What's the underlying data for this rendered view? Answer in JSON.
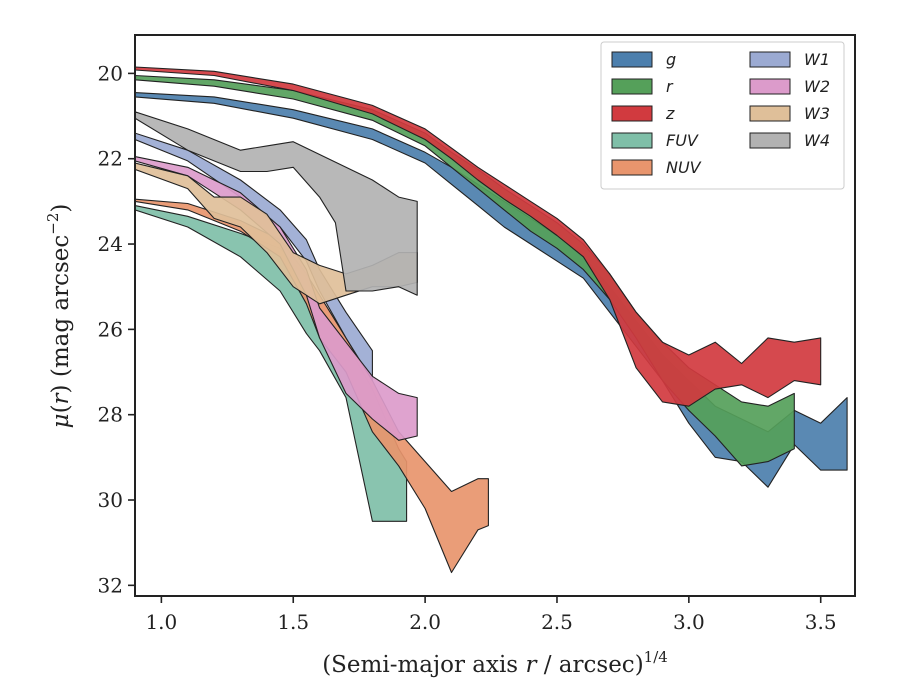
{
  "chart_data": {
    "type": "area",
    "xlabel": "(Semi-major axis r / arcsec)^1/4",
    "ylabel": "μ(r) (mag arcsec^−2)",
    "xlabel_parts": {
      "pre": "(Semi-major axis ",
      "var": "r",
      "post": " / arcsec)",
      "sup": "1/4"
    },
    "ylabel_parts": {
      "var": "μ",
      "open": "(",
      "var2": "r",
      "close": ")",
      "rest": " (mag arcsec",
      "sup": "−2",
      "end": ")"
    },
    "xlim": [
      0.9,
      3.63
    ],
    "ylim": [
      32.25,
      19.1
    ],
    "y_inverted": true,
    "xticks": [
      "1.0",
      "1.5",
      "2.0",
      "2.5",
      "3.0",
      "3.5"
    ],
    "xtick_values": [
      1.0,
      1.5,
      2.0,
      2.5,
      3.0,
      3.5
    ],
    "yticks": [
      "20",
      "22",
      "24",
      "26",
      "28",
      "30",
      "32"
    ],
    "ytick_values": [
      20,
      22,
      24,
      26,
      28,
      30,
      32
    ],
    "grid": false,
    "legend_placement": "top-right",
    "legend_columns": 2,
    "series": [
      {
        "name": "g",
        "color": "#4c7fad",
        "upper": [
          [
            0.9,
            20.45
          ],
          [
            1.2,
            20.55
          ],
          [
            1.5,
            20.85
          ],
          [
            1.8,
            21.3
          ],
          [
            2.0,
            21.85
          ],
          [
            2.1,
            22.2
          ],
          [
            2.2,
            22.6
          ],
          [
            2.3,
            23.0
          ],
          [
            2.4,
            23.4
          ],
          [
            2.5,
            23.8
          ],
          [
            2.6,
            24.3
          ],
          [
            2.7,
            25.0
          ],
          [
            2.8,
            25.8
          ],
          [
            2.9,
            26.6
          ],
          [
            3.0,
            27.2
          ],
          [
            3.1,
            27.8
          ],
          [
            3.2,
            28.1
          ],
          [
            3.3,
            28.4
          ],
          [
            3.4,
            27.9
          ],
          [
            3.5,
            28.2
          ],
          [
            3.6,
            27.6
          ]
        ],
        "lower": [
          [
            0.9,
            20.55
          ],
          [
            1.2,
            20.7
          ],
          [
            1.5,
            21.05
          ],
          [
            1.8,
            21.55
          ],
          [
            2.0,
            22.1
          ],
          [
            2.1,
            22.6
          ],
          [
            2.2,
            23.1
          ],
          [
            2.3,
            23.6
          ],
          [
            2.4,
            24.0
          ],
          [
            2.5,
            24.4
          ],
          [
            2.6,
            24.8
          ],
          [
            2.7,
            25.6
          ],
          [
            2.8,
            26.4
          ],
          [
            2.9,
            27.2
          ],
          [
            3.0,
            28.2
          ],
          [
            3.1,
            29.0
          ],
          [
            3.2,
            29.1
          ],
          [
            3.3,
            29.7
          ],
          [
            3.4,
            28.7
          ],
          [
            3.5,
            29.3
          ],
          [
            3.6,
            29.3
          ]
        ]
      },
      {
        "name": "r",
        "color": "#55a05a",
        "upper": [
          [
            0.9,
            20.05
          ],
          [
            1.2,
            20.15
          ],
          [
            1.5,
            20.4
          ],
          [
            1.8,
            20.85
          ],
          [
            2.0,
            21.4
          ],
          [
            2.1,
            21.85
          ],
          [
            2.2,
            22.25
          ],
          [
            2.3,
            22.7
          ],
          [
            2.4,
            23.1
          ],
          [
            2.5,
            23.5
          ],
          [
            2.6,
            24.0
          ],
          [
            2.7,
            24.7
          ],
          [
            2.8,
            25.6
          ],
          [
            2.9,
            26.3
          ],
          [
            3.0,
            26.9
          ],
          [
            3.1,
            27.3
          ],
          [
            3.2,
            27.7
          ],
          [
            3.3,
            27.8
          ],
          [
            3.4,
            27.5
          ]
        ],
        "lower": [
          [
            0.9,
            20.15
          ],
          [
            1.2,
            20.3
          ],
          [
            1.5,
            20.6
          ],
          [
            1.8,
            21.1
          ],
          [
            2.0,
            21.7
          ],
          [
            2.1,
            22.2
          ],
          [
            2.2,
            22.7
          ],
          [
            2.3,
            23.2
          ],
          [
            2.4,
            23.7
          ],
          [
            2.5,
            24.1
          ],
          [
            2.6,
            24.6
          ],
          [
            2.7,
            25.3
          ],
          [
            2.8,
            26.2
          ],
          [
            2.9,
            27.2
          ],
          [
            3.0,
            27.9
          ],
          [
            3.1,
            28.5
          ],
          [
            3.2,
            29.2
          ],
          [
            3.3,
            29.1
          ],
          [
            3.4,
            28.8
          ]
        ]
      },
      {
        "name": "z",
        "color": "#d13a3f",
        "upper": [
          [
            0.9,
            19.85
          ],
          [
            1.2,
            19.95
          ],
          [
            1.5,
            20.25
          ],
          [
            1.8,
            20.75
          ],
          [
            2.0,
            21.3
          ],
          [
            2.1,
            21.75
          ],
          [
            2.2,
            22.2
          ],
          [
            2.3,
            22.6
          ],
          [
            2.4,
            23.0
          ],
          [
            2.5,
            23.4
          ],
          [
            2.6,
            23.9
          ],
          [
            2.7,
            24.7
          ],
          [
            2.8,
            25.6
          ],
          [
            2.9,
            26.3
          ],
          [
            3.0,
            26.6
          ],
          [
            3.1,
            26.3
          ],
          [
            3.2,
            26.8
          ],
          [
            3.3,
            26.2
          ],
          [
            3.4,
            26.3
          ],
          [
            3.5,
            26.2
          ]
        ],
        "lower": [
          [
            0.9,
            19.92
          ],
          [
            1.2,
            20.05
          ],
          [
            1.5,
            20.4
          ],
          [
            1.8,
            20.95
          ],
          [
            2.0,
            21.55
          ],
          [
            2.1,
            22.0
          ],
          [
            2.2,
            22.5
          ],
          [
            2.3,
            22.95
          ],
          [
            2.4,
            23.35
          ],
          [
            2.5,
            23.8
          ],
          [
            2.6,
            24.3
          ],
          [
            2.7,
            25.3
          ],
          [
            2.8,
            26.9
          ],
          [
            2.9,
            27.7
          ],
          [
            3.0,
            27.8
          ],
          [
            3.1,
            27.4
          ],
          [
            3.2,
            27.3
          ],
          [
            3.3,
            27.6
          ],
          [
            3.4,
            27.2
          ],
          [
            3.5,
            27.3
          ]
        ]
      },
      {
        "name": "FUV",
        "color": "#7fbfa8",
        "upper": [
          [
            0.9,
            23.1
          ],
          [
            1.1,
            23.35
          ],
          [
            1.3,
            23.75
          ],
          [
            1.45,
            24.1
          ],
          [
            1.55,
            24.8
          ],
          [
            1.6,
            25.6
          ],
          [
            1.7,
            26.3
          ],
          [
            1.8,
            27.4
          ],
          [
            1.9,
            28.8
          ],
          [
            1.93,
            29.1
          ]
        ],
        "lower": [
          [
            0.9,
            23.2
          ],
          [
            1.1,
            23.6
          ],
          [
            1.3,
            24.3
          ],
          [
            1.45,
            25.1
          ],
          [
            1.55,
            26.1
          ],
          [
            1.6,
            26.5
          ],
          [
            1.7,
            27.6
          ],
          [
            1.8,
            30.5
          ],
          [
            1.93,
            30.5
          ]
        ]
      },
      {
        "name": "NUV",
        "color": "#e8956d",
        "upper": [
          [
            0.9,
            22.95
          ],
          [
            1.1,
            23.05
          ],
          [
            1.3,
            23.45
          ],
          [
            1.45,
            23.9
          ],
          [
            1.55,
            24.7
          ],
          [
            1.6,
            25.2
          ],
          [
            1.7,
            26.2
          ],
          [
            1.8,
            27.2
          ],
          [
            1.9,
            28.4
          ],
          [
            2.0,
            29.1
          ],
          [
            2.1,
            29.8
          ],
          [
            2.2,
            29.5
          ],
          [
            2.24,
            29.5
          ]
        ],
        "lower": [
          [
            0.9,
            23.0
          ],
          [
            1.1,
            23.2
          ],
          [
            1.3,
            23.7
          ],
          [
            1.45,
            24.3
          ],
          [
            1.55,
            25.4
          ],
          [
            1.6,
            26.2
          ],
          [
            1.7,
            27.0
          ],
          [
            1.8,
            28.4
          ],
          [
            1.9,
            29.2
          ],
          [
            2.0,
            30.2
          ],
          [
            2.1,
            31.7
          ],
          [
            2.2,
            30.7
          ],
          [
            2.24,
            30.6
          ]
        ]
      },
      {
        "name": "W1",
        "color": "#9baad2",
        "upper": [
          [
            0.9,
            21.4
          ],
          [
            1.1,
            21.8
          ],
          [
            1.3,
            22.5
          ],
          [
            1.45,
            23.2
          ],
          [
            1.55,
            23.9
          ],
          [
            1.6,
            24.6
          ],
          [
            1.7,
            25.6
          ],
          [
            1.8,
            26.5
          ]
        ],
        "lower": [
          [
            0.9,
            21.55
          ],
          [
            1.1,
            22.05
          ],
          [
            1.3,
            22.9
          ],
          [
            1.45,
            23.6
          ],
          [
            1.55,
            24.4
          ],
          [
            1.6,
            25.1
          ],
          [
            1.7,
            26.2
          ],
          [
            1.8,
            27.2
          ]
        ]
      },
      {
        "name": "W2",
        "color": "#dc9bcb",
        "upper": [
          [
            0.9,
            21.95
          ],
          [
            1.1,
            22.2
          ],
          [
            1.3,
            22.8
          ],
          [
            1.45,
            23.6
          ],
          [
            1.55,
            24.6
          ],
          [
            1.6,
            25.5
          ],
          [
            1.7,
            26.3
          ],
          [
            1.8,
            27.1
          ],
          [
            1.9,
            27.5
          ],
          [
            1.97,
            27.6
          ]
        ],
        "lower": [
          [
            0.9,
            22.05
          ],
          [
            1.1,
            22.4
          ],
          [
            1.3,
            23.2
          ],
          [
            1.45,
            24.0
          ],
          [
            1.55,
            25.2
          ],
          [
            1.6,
            26.2
          ],
          [
            1.7,
            27.5
          ],
          [
            1.8,
            28.1
          ],
          [
            1.9,
            28.6
          ],
          [
            1.97,
            28.5
          ]
        ]
      },
      {
        "name": "W3",
        "color": "#dfbf99",
        "upper": [
          [
            0.9,
            22.1
          ],
          [
            1.1,
            22.4
          ],
          [
            1.2,
            22.9
          ],
          [
            1.3,
            22.9
          ],
          [
            1.4,
            23.3
          ],
          [
            1.5,
            24.2
          ],
          [
            1.6,
            24.5
          ],
          [
            1.7,
            24.7
          ],
          [
            1.8,
            24.5
          ],
          [
            1.9,
            24.2
          ],
          [
            1.97,
            24.2
          ]
        ],
        "lower": [
          [
            0.9,
            22.25
          ],
          [
            1.1,
            22.7
          ],
          [
            1.2,
            23.4
          ],
          [
            1.3,
            23.6
          ],
          [
            1.4,
            24.2
          ],
          [
            1.5,
            25.0
          ],
          [
            1.6,
            25.4
          ],
          [
            1.7,
            25.2
          ],
          [
            1.8,
            25.0
          ],
          [
            1.9,
            25.0
          ],
          [
            1.97,
            24.9
          ]
        ]
      },
      {
        "name": "W4",
        "color": "#b2b2b2",
        "upper": [
          [
            0.9,
            20.9
          ],
          [
            1.1,
            21.3
          ],
          [
            1.3,
            21.8
          ],
          [
            1.4,
            21.7
          ],
          [
            1.5,
            21.6
          ],
          [
            1.6,
            21.9
          ],
          [
            1.7,
            22.2
          ],
          [
            1.8,
            22.5
          ],
          [
            1.9,
            22.9
          ],
          [
            1.97,
            23.0
          ]
        ],
        "lower": [
          [
            0.9,
            21.05
          ],
          [
            1.1,
            21.8
          ],
          [
            1.3,
            22.3
          ],
          [
            1.4,
            22.3
          ],
          [
            1.5,
            22.2
          ],
          [
            1.6,
            22.9
          ],
          [
            1.66,
            23.5
          ],
          [
            1.7,
            25.1
          ],
          [
            1.8,
            25.1
          ],
          [
            1.9,
            25.0
          ],
          [
            1.97,
            25.2
          ]
        ]
      }
    ]
  }
}
